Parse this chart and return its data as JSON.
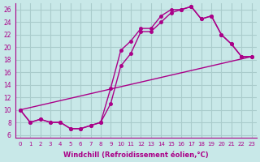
{
  "xlabel": "Windchill (Refroidissement éolien,°C)",
  "bg_color": "#c8e8e8",
  "grid_color": "#aacccc",
  "line_color": "#aa0088",
  "xlim": [
    -0.5,
    23.5
  ],
  "ylim": [
    5.5,
    27
  ],
  "xticks": [
    0,
    1,
    2,
    3,
    4,
    5,
    6,
    7,
    8,
    9,
    10,
    11,
    12,
    13,
    14,
    15,
    16,
    17,
    18,
    19,
    20,
    21,
    22,
    23
  ],
  "yticks": [
    6,
    8,
    10,
    12,
    14,
    16,
    18,
    20,
    22,
    24,
    26
  ],
  "line1_x": [
    0,
    1,
    2,
    3,
    4,
    5,
    6,
    7,
    8,
    9,
    10,
    11,
    12,
    13,
    14,
    15,
    16,
    17,
    18,
    19,
    20,
    21,
    22,
    23
  ],
  "line1_y": [
    10,
    8,
    8.5,
    8,
    8,
    7,
    7,
    7.5,
    8,
    13.5,
    19.5,
    21,
    23,
    23,
    25,
    26,
    26,
    26.5,
    24.5,
    25,
    22,
    20.5,
    18.5,
    18.5
  ],
  "line2_x": [
    0,
    1,
    2,
    3,
    4,
    5,
    6,
    7,
    8,
    9,
    10,
    11,
    12,
    13,
    14,
    15,
    16,
    17,
    18,
    19,
    20,
    21,
    22,
    23
  ],
  "line2_y": [
    10,
    8,
    8.5,
    8,
    8,
    7,
    7,
    7.5,
    8,
    11,
    17,
    19,
    22.5,
    22.5,
    24,
    25.5,
    26,
    26.5,
    24.5,
    25,
    22,
    20.5,
    18.5,
    18.5
  ],
  "line3_x": [
    0,
    23
  ],
  "line3_y": [
    10,
    18.5
  ]
}
